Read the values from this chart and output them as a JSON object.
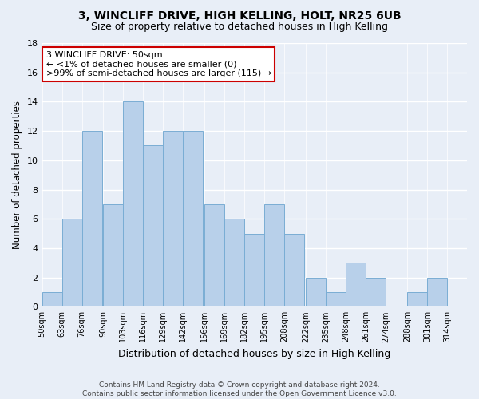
{
  "title": "3, WINCLIFF DRIVE, HIGH KELLING, HOLT, NR25 6UB",
  "subtitle": "Size of property relative to detached houses in High Kelling",
  "xlabel": "Distribution of detached houses by size in High Kelling",
  "ylabel": "Number of detached properties",
  "bin_labels": [
    "50sqm",
    "63sqm",
    "76sqm",
    "90sqm",
    "103sqm",
    "116sqm",
    "129sqm",
    "142sqm",
    "156sqm",
    "169sqm",
    "182sqm",
    "195sqm",
    "208sqm",
    "222sqm",
    "235sqm",
    "248sqm",
    "261sqm",
    "274sqm",
    "288sqm",
    "301sqm",
    "314sqm"
  ],
  "bin_edges": [
    50,
    63,
    76,
    90,
    103,
    116,
    129,
    142,
    156,
    169,
    182,
    195,
    208,
    222,
    235,
    248,
    261,
    274,
    288,
    301,
    314
  ],
  "counts": [
    1,
    6,
    12,
    7,
    14,
    11,
    12,
    12,
    7,
    6,
    5,
    7,
    5,
    2,
    1,
    3,
    2,
    0,
    1,
    2,
    0
  ],
  "bar_color": "#b8d0ea",
  "bar_edge_color": "#7aadd4",
  "annotation_box_text": "3 WINCLIFF DRIVE: 50sqm\n← <1% of detached houses are smaller (0)\n>99% of semi-detached houses are larger (115) →",
  "annotation_box_edgecolor": "#cc0000",
  "annotation_box_facecolor": "#ffffff",
  "ylim": [
    0,
    18
  ],
  "yticks": [
    0,
    2,
    4,
    6,
    8,
    10,
    12,
    14,
    16,
    18
  ],
  "footer_line1": "Contains HM Land Registry data © Crown copyright and database right 2024.",
  "footer_line2": "Contains public sector information licensed under the Open Government Licence v3.0.",
  "background_color": "#e8eef7",
  "grid_color": "#ffffff",
  "title_fontsize": 10,
  "subtitle_fontsize": 9
}
